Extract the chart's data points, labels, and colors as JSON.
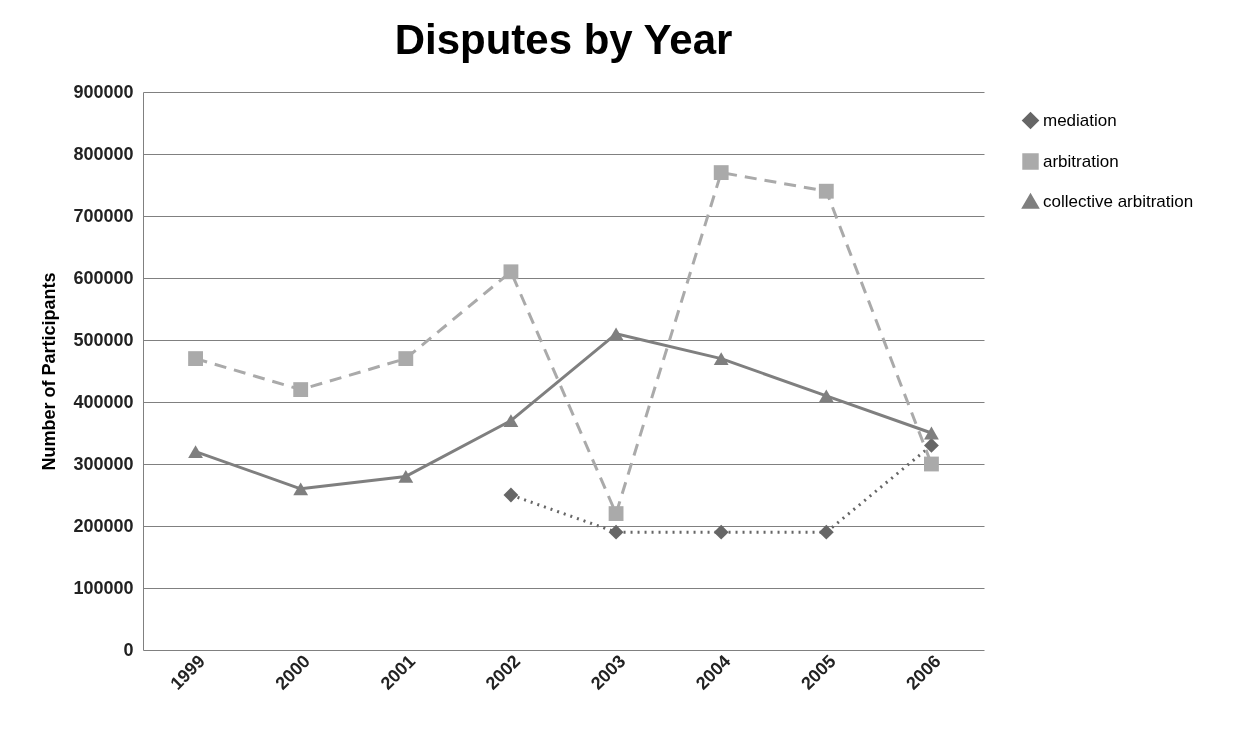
{
  "chart_data": {
    "type": "line",
    "title": "Disputes by Year",
    "ylabel": "Number of Participants",
    "categories": [
      "1999",
      "2000",
      "2001",
      "2002",
      "2003",
      "2004",
      "2005",
      "2006"
    ],
    "series": [
      {
        "name": "mediation",
        "color": "#666666",
        "marker": "diamond",
        "line_style": "dotted",
        "values": [
          null,
          null,
          null,
          250000,
          190000,
          190000,
          190000,
          330000
        ]
      },
      {
        "name": "arbitration",
        "color": "#aaaaaa",
        "marker": "square",
        "line_style": "dashed",
        "values": [
          470000,
          420000,
          470000,
          610000,
          220000,
          770000,
          740000,
          300000
        ]
      },
      {
        "name": "collective arbitration",
        "color": "#7f7f7f",
        "marker": "triangle",
        "line_style": "solid",
        "values": [
          320000,
          260000,
          280000,
          370000,
          510000,
          470000,
          410000,
          350000
        ]
      }
    ],
    "ylim": [
      0,
      900000
    ],
    "yticks": [
      0,
      100000,
      200000,
      300000,
      400000,
      500000,
      600000,
      700000,
      800000,
      900000
    ],
    "grid": "y",
    "legend": "right"
  }
}
